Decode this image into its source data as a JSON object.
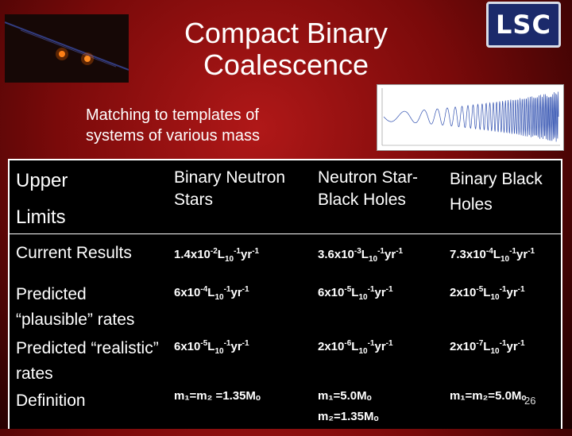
{
  "slide": {
    "title": "Compact Binary Coalescence",
    "subtitle": "Matching to templates of systems of various mass",
    "logo_text": "LSC",
    "page_number": "26"
  },
  "table": {
    "header": {
      "corner_line1": "Upper",
      "corner_line2": "Limits",
      "col1": "Binary Neutron Stars",
      "col2": "Neutron Star-Black Holes",
      "col3": "Binary Black Holes"
    },
    "rows": [
      {
        "label": "Current Results",
        "v1": {
          "mant": "1.4x10",
          "exp": "-2"
        },
        "v2": {
          "mant": "3.6x10",
          "exp": "-3"
        },
        "v3": {
          "mant": "7.3x10",
          "exp": "-4"
        }
      },
      {
        "label": "Predicted “plausible” rates",
        "v1": {
          "mant": "6x10",
          "exp": "-4"
        },
        "v2": {
          "mant": "6x10",
          "exp": "-5"
        },
        "v3": {
          "mant": "2x10",
          "exp": "-5"
        }
      },
      {
        "label": "Predicted “realistic” rates",
        "v1": {
          "mant": "6x10",
          "exp": "-5"
        },
        "v2": {
          "mant": "2x10",
          "exp": "-6"
        },
        "v3": {
          "mant": "2x10",
          "exp": "-7"
        }
      }
    ],
    "unit": {
      "L": "L",
      "sub": "10",
      "exp1": "-1",
      "yr": "yr",
      "exp2": "-1"
    },
    "definition": {
      "label": "Definition",
      "d1": "m₁=m₂ =1.35Mₒ",
      "d2a": "m₁=5.0Mₒ",
      "d2b": "m₂=1.35Mₒ",
      "d3": "m₁=m₂=5.0Mₒ"
    }
  }
}
